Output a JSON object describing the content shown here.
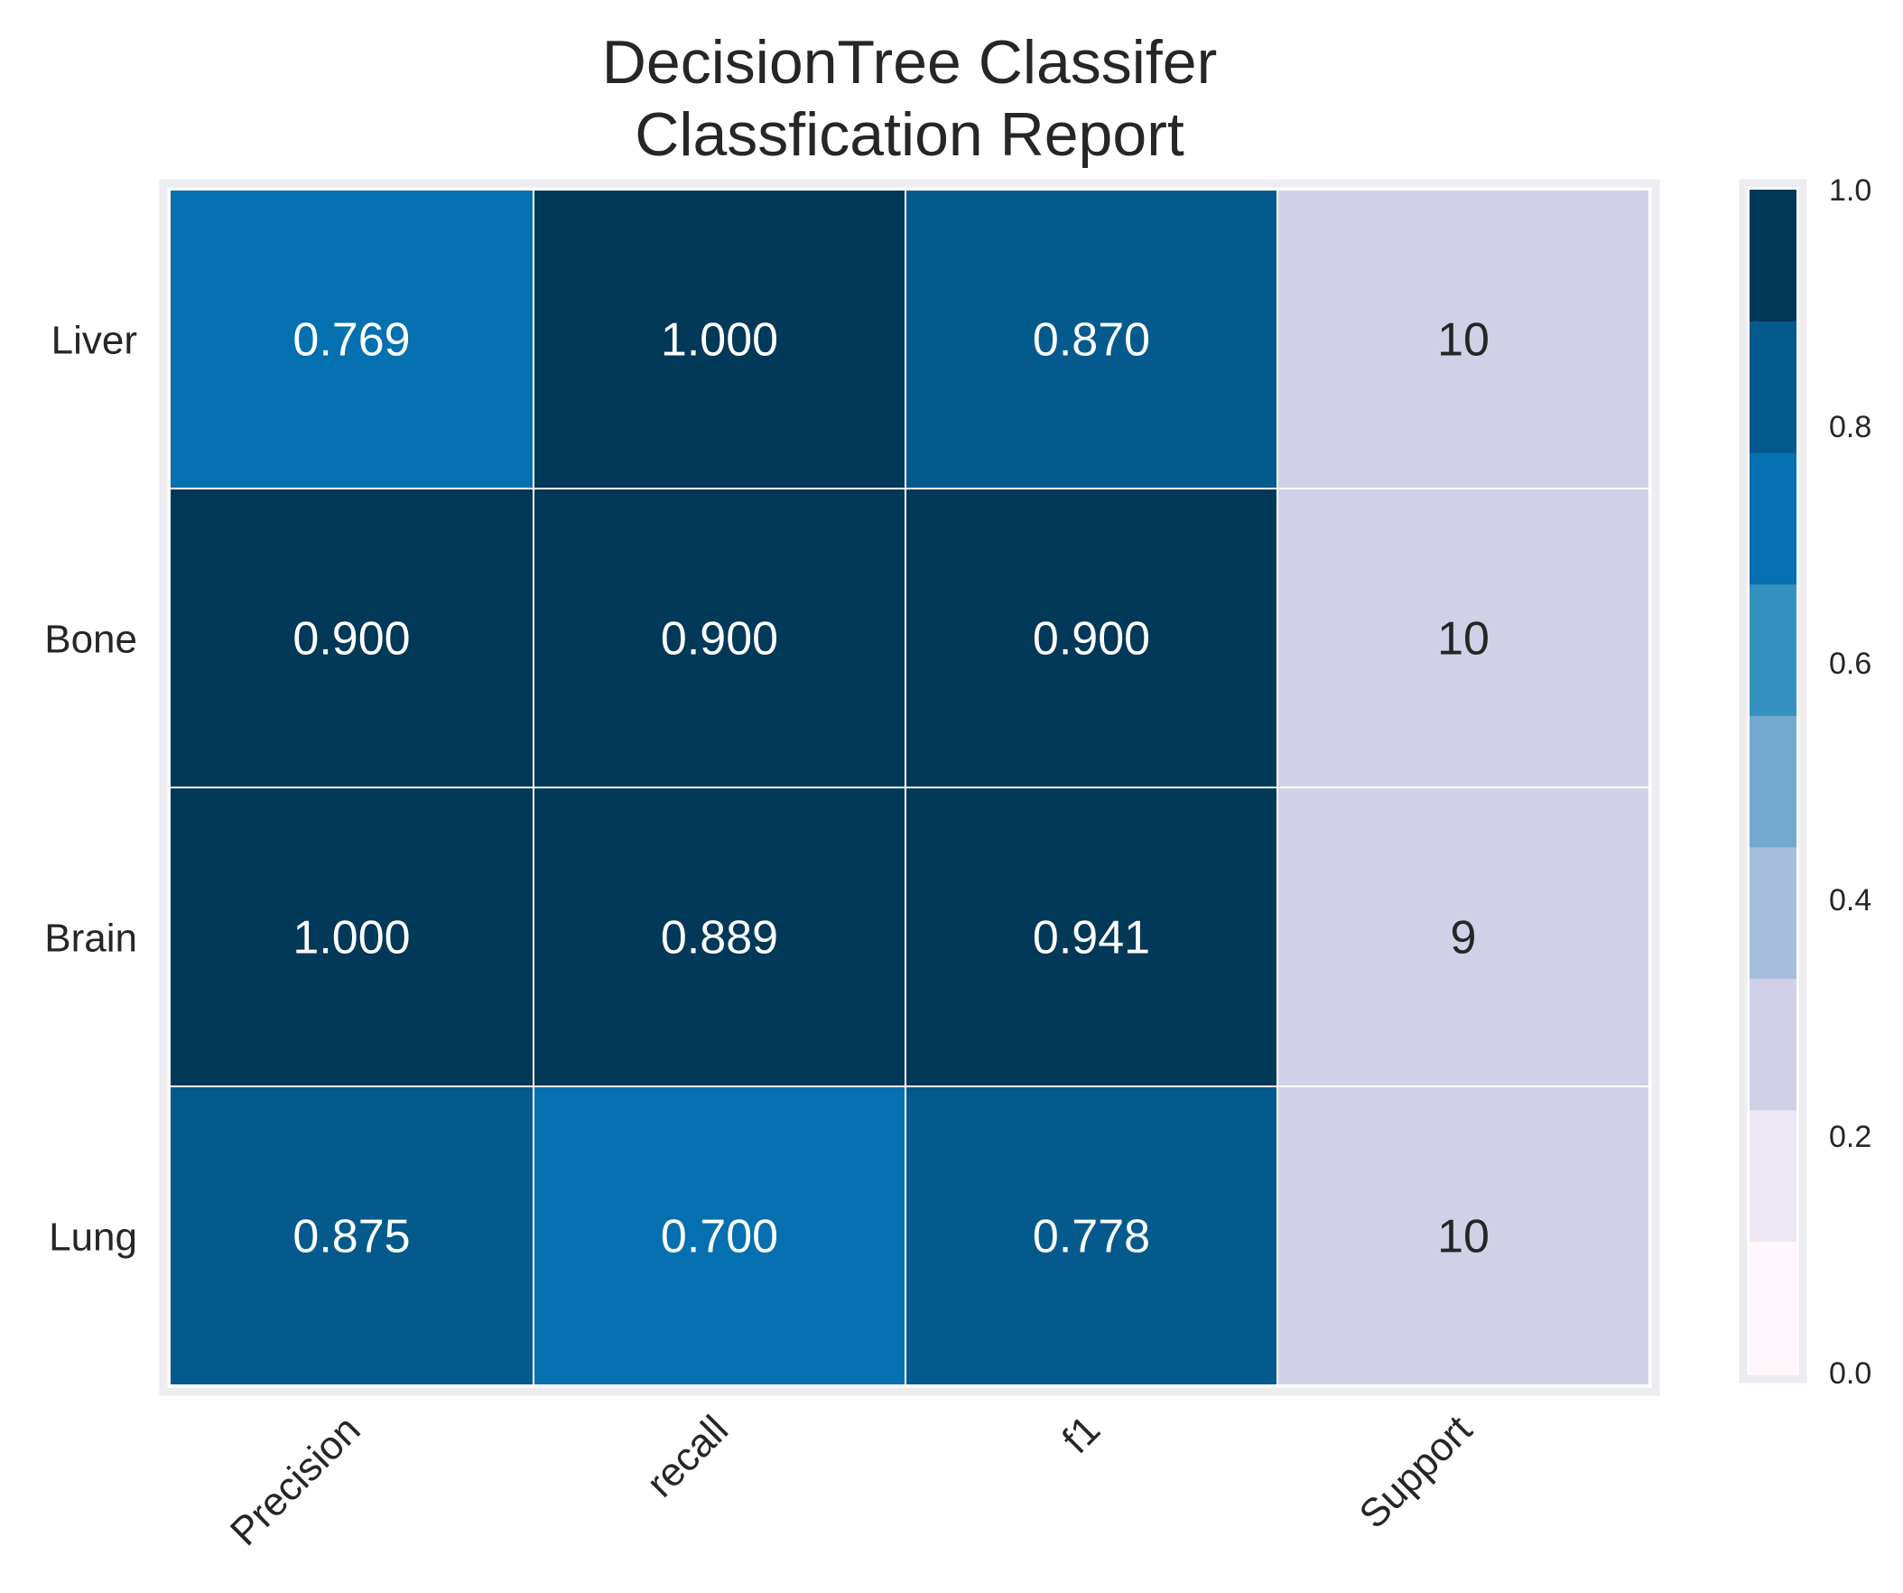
{
  "chart_data": {
    "type": "heatmap",
    "title": "DecisionTree Classifer\nClassfication Report",
    "title_lines": [
      "DecisionTree Classifer",
      "Classfication Report"
    ],
    "rows": [
      "Liver",
      "Bone",
      "Brain",
      "Lung"
    ],
    "columns": [
      "Precision",
      "recall",
      "f1",
      "Support"
    ],
    "cells": [
      [
        "0.769",
        "1.000",
        "0.870",
        "10"
      ],
      [
        "0.900",
        "0.900",
        "0.900",
        "10"
      ],
      [
        "1.000",
        "0.889",
        "0.941",
        "9"
      ],
      [
        "0.875",
        "0.700",
        "0.778",
        "10"
      ]
    ],
    "values": [
      [
        0.769,
        1.0,
        0.87,
        10
      ],
      [
        0.9,
        0.9,
        0.9,
        10
      ],
      [
        1.0,
        0.889,
        0.941,
        9
      ],
      [
        0.875,
        0.7,
        0.778,
        10
      ]
    ],
    "support_color_value": 0.3,
    "colorbar": {
      "range": [
        0.0,
        1.0
      ],
      "ticks": [
        0.0,
        0.2,
        0.4,
        0.6,
        0.8,
        1.0
      ],
      "tick_labels": [
        "0.0",
        "0.2",
        "0.4",
        "0.6",
        "0.8",
        "1.0"
      ],
      "bins": 9,
      "colors": [
        "#fff7fb",
        "#ece7f2",
        "#d0d1e6",
        "#a6bddb",
        "#74a9cf",
        "#3690c0",
        "#0570b0",
        "#045a8d",
        "#023858"
      ]
    },
    "xlabel": "",
    "ylabel": "",
    "grid": true,
    "legend": "right"
  }
}
